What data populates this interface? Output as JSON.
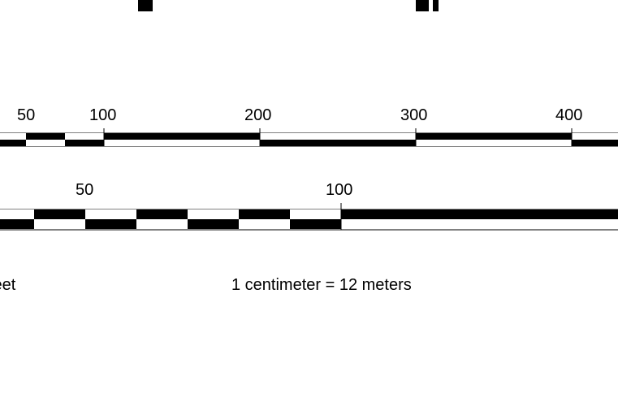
{
  "title_fragment": "y, ",
  "scale_bar_feet": {
    "unit_label": "feet",
    "ticks": [
      "50",
      "100",
      "200",
      "300",
      "400"
    ]
  },
  "scale_bar_meters": {
    "ticks": [
      "50",
      "100"
    ]
  },
  "scale_statement": "1 centimeter = 12 meters",
  "colors": {
    "bar_dark": "#000000",
    "bar_light": "#ffffff",
    "text": "#000000"
  }
}
